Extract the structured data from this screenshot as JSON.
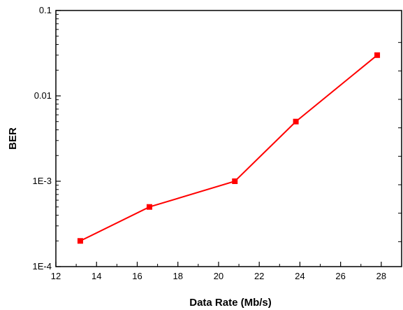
{
  "chart_data": {
    "type": "line",
    "title": "",
    "xlabel": "Data Rate (Mb/s)",
    "ylabel": "BER",
    "xlim": [
      12,
      29
    ],
    "ylim": [
      0.0001,
      0.1
    ],
    "yscale": "log",
    "grid": false,
    "legend": "none",
    "x_ticks": [
      12,
      14,
      16,
      18,
      20,
      22,
      24,
      26,
      28
    ],
    "x_tick_labels": [
      "12",
      "14",
      "16",
      "18",
      "20",
      "22",
      "24",
      "26",
      "28"
    ],
    "y_ticks": [
      0.0001,
      0.001,
      0.01,
      0.1
    ],
    "y_tick_labels": [
      "1E-4",
      "1E-3",
      "0.01",
      "0.1"
    ],
    "series": [
      {
        "color": "#ff0000",
        "marker": "square",
        "x": [
          13.2,
          16.6,
          20.8,
          23.8,
          27.8
        ],
        "y": [
          0.0002,
          0.0005,
          0.001,
          0.005,
          0.03
        ]
      }
    ]
  }
}
